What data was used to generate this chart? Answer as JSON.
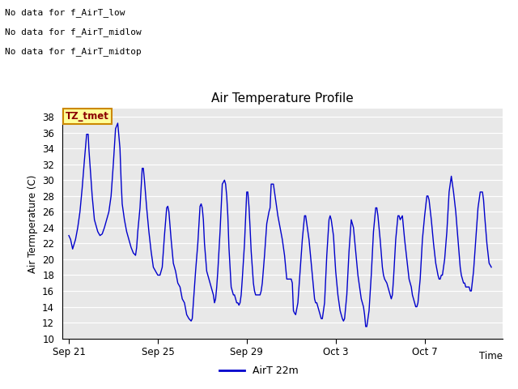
{
  "title": "Air Temperature Profile",
  "xlabel": "Time",
  "ylabel": "Air Termperature (C)",
  "ylim": [
    10,
    39
  ],
  "yticks": [
    10,
    12,
    14,
    16,
    18,
    20,
    22,
    24,
    26,
    28,
    30,
    32,
    34,
    36,
    38
  ],
  "plot_bg_color": "#e8e8e8",
  "line_color": "#0000cc",
  "legend_label": "AirT 22m",
  "text_annotations": [
    "No data for f_AirT_low",
    "No data for f_AirT_midlow",
    "No data for f_AirT_midtop"
  ],
  "tmet_label": "TZ_tmet",
  "x_tick_labels": [
    "Sep 21",
    "Sep 25",
    "Sep 29",
    "Oct 3",
    "Oct 7"
  ],
  "x_tick_days": [
    0,
    4,
    8,
    12,
    16
  ],
  "data_points": [
    [
      0.0,
      23.0
    ],
    [
      0.08,
      22.5
    ],
    [
      0.17,
      21.3
    ],
    [
      0.3,
      22.5
    ],
    [
      0.4,
      24.0
    ],
    [
      0.5,
      26.0
    ],
    [
      0.6,
      29.0
    ],
    [
      0.7,
      32.5
    ],
    [
      0.8,
      35.8
    ],
    [
      0.87,
      35.8
    ],
    [
      0.9,
      34.0
    ],
    [
      1.0,
      30.0
    ],
    [
      1.05,
      28.0
    ],
    [
      1.1,
      26.5
    ],
    [
      1.15,
      25.0
    ],
    [
      1.2,
      24.5
    ],
    [
      1.3,
      23.5
    ],
    [
      1.4,
      23.0
    ],
    [
      1.5,
      23.2
    ],
    [
      1.6,
      24.0
    ],
    [
      1.7,
      25.0
    ],
    [
      1.8,
      26.0
    ],
    [
      1.9,
      28.0
    ],
    [
      2.0,
      32.0
    ],
    [
      2.1,
      36.5
    ],
    [
      2.2,
      37.2
    ],
    [
      2.3,
      34.0
    ],
    [
      2.35,
      30.0
    ],
    [
      2.4,
      27.0
    ],
    [
      2.5,
      25.0
    ],
    [
      2.6,
      23.5
    ],
    [
      2.7,
      22.5
    ],
    [
      2.8,
      21.5
    ],
    [
      2.9,
      20.8
    ],
    [
      3.0,
      20.5
    ],
    [
      3.05,
      21.5
    ],
    [
      3.1,
      23.5
    ],
    [
      3.2,
      26.5
    ],
    [
      3.3,
      31.5
    ],
    [
      3.35,
      31.5
    ],
    [
      3.4,
      30.0
    ],
    [
      3.5,
      26.5
    ],
    [
      3.6,
      23.5
    ],
    [
      3.7,
      21.0
    ],
    [
      3.8,
      19.0
    ],
    [
      3.9,
      18.5
    ],
    [
      4.0,
      18.0
    ],
    [
      4.1,
      18.0
    ],
    [
      4.2,
      19.0
    ],
    [
      4.3,
      23.0
    ],
    [
      4.4,
      26.5
    ],
    [
      4.45,
      26.7
    ],
    [
      4.5,
      26.0
    ],
    [
      4.6,
      22.5
    ],
    [
      4.7,
      19.5
    ],
    [
      4.8,
      18.5
    ],
    [
      4.9,
      17.0
    ],
    [
      5.0,
      16.5
    ],
    [
      5.1,
      15.0
    ],
    [
      5.2,
      14.5
    ],
    [
      5.3,
      13.0
    ],
    [
      5.4,
      12.5
    ],
    [
      5.5,
      12.2
    ],
    [
      5.55,
      12.5
    ],
    [
      5.6,
      14.5
    ],
    [
      5.7,
      18.5
    ],
    [
      5.8,
      22.0
    ],
    [
      5.9,
      26.7
    ],
    [
      5.95,
      27.0
    ],
    [
      6.0,
      26.5
    ],
    [
      6.05,
      25.0
    ],
    [
      6.1,
      22.0
    ],
    [
      6.2,
      18.5
    ],
    [
      6.3,
      17.5
    ],
    [
      6.35,
      17.0
    ],
    [
      6.4,
      16.5
    ],
    [
      6.45,
      16.0
    ],
    [
      6.5,
      15.5
    ],
    [
      6.55,
      14.5
    ],
    [
      6.6,
      15.0
    ],
    [
      6.65,
      16.5
    ],
    [
      6.7,
      18.5
    ],
    [
      6.8,
      23.5
    ],
    [
      6.9,
      29.5
    ],
    [
      7.0,
      30.0
    ],
    [
      7.05,
      29.5
    ],
    [
      7.1,
      28.0
    ],
    [
      7.15,
      25.5
    ],
    [
      7.2,
      21.5
    ],
    [
      7.3,
      16.5
    ],
    [
      7.4,
      15.5
    ],
    [
      7.45,
      15.5
    ],
    [
      7.5,
      15.0
    ],
    [
      7.55,
      14.5
    ],
    [
      7.6,
      14.5
    ],
    [
      7.65,
      14.2
    ],
    [
      7.7,
      14.5
    ],
    [
      7.75,
      15.5
    ],
    [
      7.8,
      17.5
    ],
    [
      7.9,
      22.0
    ],
    [
      8.0,
      28.5
    ],
    [
      8.05,
      28.5
    ],
    [
      8.1,
      26.7
    ],
    [
      8.15,
      24.0
    ],
    [
      8.2,
      21.0
    ],
    [
      8.3,
      17.0
    ],
    [
      8.35,
      16.0
    ],
    [
      8.4,
      15.5
    ],
    [
      8.45,
      15.5
    ],
    [
      8.5,
      15.5
    ],
    [
      8.55,
      15.5
    ],
    [
      8.6,
      15.5
    ],
    [
      8.65,
      16.0
    ],
    [
      8.7,
      17.0
    ],
    [
      8.8,
      20.5
    ],
    [
      8.9,
      24.5
    ],
    [
      9.0,
      26.0
    ],
    [
      9.05,
      26.5
    ],
    [
      9.1,
      29.5
    ],
    [
      9.2,
      29.5
    ],
    [
      9.3,
      27.5
    ],
    [
      9.4,
      25.5
    ],
    [
      9.5,
      24.0
    ],
    [
      9.6,
      22.5
    ],
    [
      9.7,
      20.5
    ],
    [
      9.8,
      17.5
    ],
    [
      9.9,
      17.5
    ],
    [
      10.0,
      17.5
    ],
    [
      10.05,
      17.0
    ],
    [
      10.1,
      13.5
    ],
    [
      10.15,
      13.2
    ],
    [
      10.2,
      13.0
    ],
    [
      10.3,
      14.5
    ],
    [
      10.4,
      18.5
    ],
    [
      10.5,
      22.5
    ],
    [
      10.6,
      25.5
    ],
    [
      10.65,
      25.5
    ],
    [
      10.7,
      24.5
    ],
    [
      10.8,
      22.5
    ],
    [
      10.9,
      19.5
    ],
    [
      11.0,
      16.5
    ],
    [
      11.05,
      15.0
    ],
    [
      11.1,
      14.5
    ],
    [
      11.15,
      14.5
    ],
    [
      11.2,
      14.0
    ],
    [
      11.25,
      13.5
    ],
    [
      11.3,
      13.0
    ],
    [
      11.35,
      12.5
    ],
    [
      11.4,
      12.5
    ],
    [
      11.5,
      14.5
    ],
    [
      11.6,
      20.5
    ],
    [
      11.7,
      25.0
    ],
    [
      11.75,
      25.5
    ],
    [
      11.8,
      25.0
    ],
    [
      11.9,
      23.0
    ],
    [
      12.0,
      18.5
    ],
    [
      12.1,
      15.5
    ],
    [
      12.15,
      14.5
    ],
    [
      12.2,
      13.5
    ],
    [
      12.25,
      13.0
    ],
    [
      12.3,
      12.5
    ],
    [
      12.35,
      12.2
    ],
    [
      12.4,
      12.5
    ],
    [
      12.5,
      15.5
    ],
    [
      12.6,
      21.0
    ],
    [
      12.7,
      25.0
    ],
    [
      12.75,
      24.5
    ],
    [
      12.8,
      24.0
    ],
    [
      12.9,
      21.0
    ],
    [
      13.0,
      18.0
    ],
    [
      13.05,
      17.0
    ],
    [
      13.1,
      16.0
    ],
    [
      13.15,
      15.0
    ],
    [
      13.2,
      14.5
    ],
    [
      13.25,
      14.0
    ],
    [
      13.3,
      13.0
    ],
    [
      13.35,
      11.5
    ],
    [
      13.4,
      11.5
    ],
    [
      13.5,
      13.5
    ],
    [
      13.6,
      18.0
    ],
    [
      13.7,
      23.5
    ],
    [
      13.8,
      26.5
    ],
    [
      13.85,
      26.5
    ],
    [
      13.9,
      25.5
    ],
    [
      14.0,
      22.5
    ],
    [
      14.1,
      19.0
    ],
    [
      14.15,
      18.0
    ],
    [
      14.2,
      17.5
    ],
    [
      14.3,
      17.0
    ],
    [
      14.4,
      16.0
    ],
    [
      14.45,
      15.5
    ],
    [
      14.5,
      15.0
    ],
    [
      14.55,
      15.5
    ],
    [
      14.6,
      17.5
    ],
    [
      14.7,
      22.5
    ],
    [
      14.8,
      25.5
    ],
    [
      14.85,
      25.5
    ],
    [
      14.9,
      25.0
    ],
    [
      15.0,
      25.5
    ],
    [
      15.1,
      22.5
    ],
    [
      15.2,
      20.0
    ],
    [
      15.3,
      17.5
    ],
    [
      15.35,
      17.0
    ],
    [
      15.4,
      16.5
    ],
    [
      15.45,
      15.5
    ],
    [
      15.5,
      15.0
    ],
    [
      15.55,
      14.5
    ],
    [
      15.6,
      14.0
    ],
    [
      15.65,
      14.0
    ],
    [
      15.7,
      14.5
    ],
    [
      15.8,
      17.5
    ],
    [
      15.9,
      22.5
    ],
    [
      16.0,
      25.5
    ],
    [
      16.1,
      28.0
    ],
    [
      16.15,
      28.0
    ],
    [
      16.2,
      27.5
    ],
    [
      16.3,
      25.0
    ],
    [
      16.4,
      22.0
    ],
    [
      16.5,
      19.5
    ],
    [
      16.6,
      18.0
    ],
    [
      16.65,
      17.5
    ],
    [
      16.7,
      17.5
    ],
    [
      16.75,
      18.0
    ],
    [
      16.8,
      18.0
    ],
    [
      16.9,
      20.0
    ],
    [
      17.0,
      23.5
    ],
    [
      17.1,
      28.5
    ],
    [
      17.2,
      30.5
    ],
    [
      17.3,
      28.5
    ],
    [
      17.4,
      26.0
    ],
    [
      17.5,
      22.5
    ],
    [
      17.6,
      19.0
    ],
    [
      17.65,
      18.0
    ],
    [
      17.7,
      17.5
    ],
    [
      17.75,
      17.0
    ],
    [
      17.8,
      17.0
    ],
    [
      17.85,
      16.5
    ],
    [
      17.9,
      16.5
    ],
    [
      18.0,
      16.5
    ],
    [
      18.05,
      16.0
    ],
    [
      18.1,
      16.0
    ],
    [
      18.2,
      18.5
    ],
    [
      18.3,
      22.5
    ],
    [
      18.4,
      26.5
    ],
    [
      18.5,
      28.5
    ],
    [
      18.6,
      28.5
    ],
    [
      18.65,
      27.5
    ],
    [
      18.7,
      25.5
    ],
    [
      18.8,
      22.0
    ],
    [
      18.9,
      19.5
    ],
    [
      19.0,
      19.0
    ]
  ]
}
